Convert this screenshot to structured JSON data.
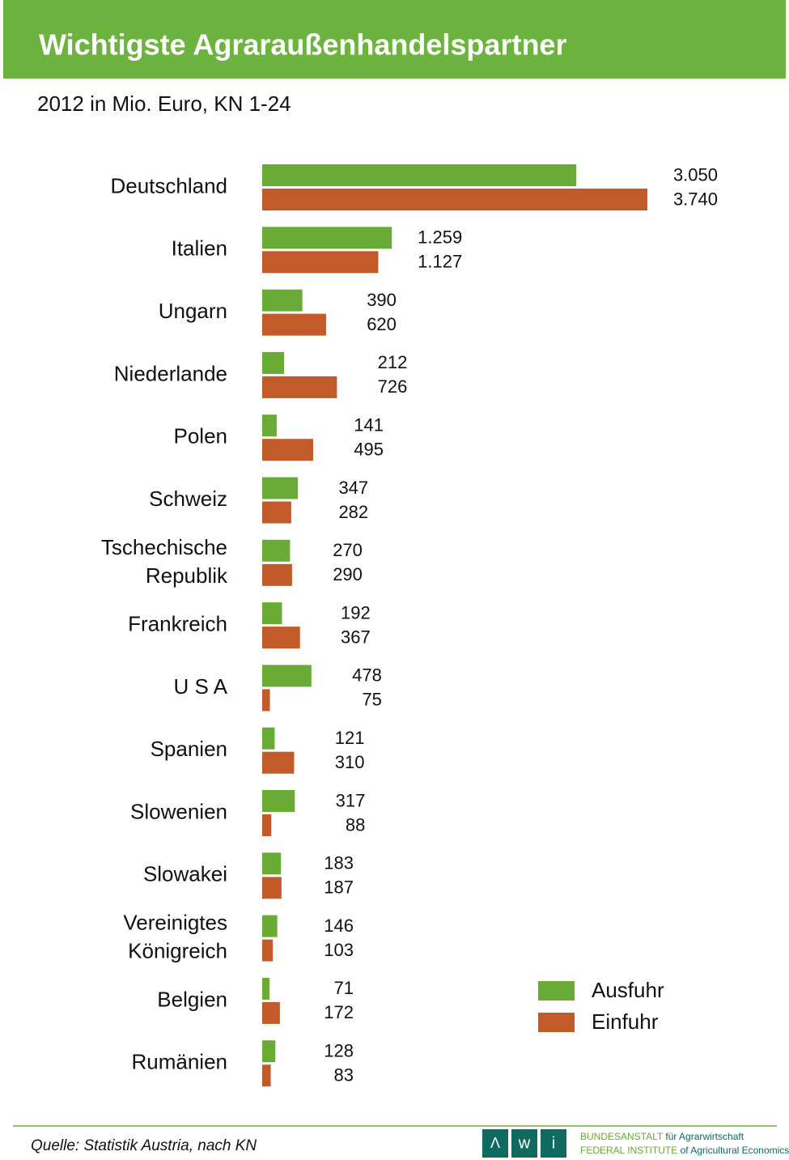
{
  "chart_data": {
    "type": "hbar",
    "title": "Wichtigste Agraraußenhandelspartner",
    "subtitle": "2012 in Mio. Euro, KN 1-24",
    "categories": [
      "Deutschland",
      "Italien",
      "Ungarn",
      "Niederlande",
      "Polen",
      "Schweiz",
      "Tschechische\nRepublik",
      "Frankreich",
      "U S A",
      "Spanien",
      "Slowenien",
      "Slowakei",
      "Vereinigtes\nKönigreich",
      "Belgien",
      "Rumänien"
    ],
    "series": [
      {
        "name": "Ausfuhr",
        "color": "#6aab35",
        "values": [
          3050,
          1259,
          390,
          212,
          141,
          347,
          270,
          192,
          478,
          121,
          317,
          183,
          146,
          71,
          128
        ],
        "value_labels": [
          "3.050",
          "1.259",
          "390",
          "212",
          "141",
          "347",
          "270",
          "192",
          "478",
          "121",
          "317",
          "183",
          "146",
          "71",
          "128"
        ]
      },
      {
        "name": "Einfuhr",
        "color": "#c35a29",
        "values": [
          3740,
          1127,
          620,
          726,
          495,
          282,
          290,
          367,
          75,
          310,
          88,
          187,
          103,
          172,
          83
        ],
        "value_labels": [
          "3.740",
          "1.127",
          "620",
          "726",
          "495",
          "282",
          "290",
          "367",
          "75",
          "310",
          "88",
          "187",
          "103",
          "172",
          "83"
        ]
      }
    ],
    "legend": "bottom-right",
    "source": "Quelle: Statistik Austria, nach KN"
  },
  "logo": {
    "letters": [
      "Λ",
      "w",
      "i"
    ],
    "line1a": "BUNDESANSTALT",
    "line1b": "für Agrarwirtschaft",
    "line2a": "FEDERAL INSTITUTE",
    "line2b": "of Agricultural Economics"
  }
}
